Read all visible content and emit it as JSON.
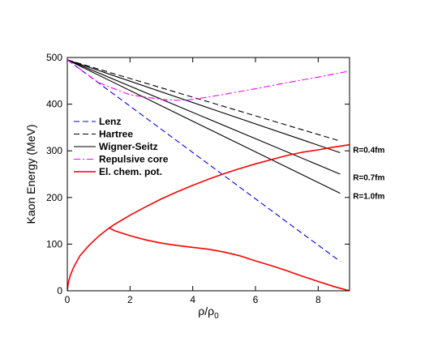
{
  "chart_data": {
    "type": "line",
    "title": "",
    "xlabel": "ρ/ρ",
    "xlabel_sub": "0",
    "ylabel": "Kaon Energy (MeV)",
    "xlim": [
      0,
      9
    ],
    "ylim": [
      0,
      500
    ],
    "x_ticks": [
      0,
      2,
      4,
      6,
      8
    ],
    "y_ticks": [
      0,
      100,
      200,
      300,
      400,
      500
    ],
    "grid": false,
    "legend_position": "left-middle",
    "colors": {
      "blue": "#0000ff",
      "black": "#000000",
      "magenta": "#ff00ff",
      "red": "#ff0000"
    },
    "series": [
      {
        "name": "Lenz",
        "color": "#0000ff",
        "style": "dashed",
        "x": [
          0,
          8.7
        ],
        "y": [
          495,
          63
        ]
      },
      {
        "name": "Hartree",
        "color": "#000000",
        "style": "dashed",
        "x": [
          0,
          8.7
        ],
        "y": [
          495,
          321
        ]
      },
      {
        "name": "Wigner-Seitz",
        "color": "#000000",
        "style": "solid",
        "x": [
          0,
          8.7
        ],
        "y": [
          495,
          296
        ]
      },
      {
        "color": "#000000",
        "style": "solid",
        "x": [
          0,
          8.7
        ],
        "y": [
          495,
          250
        ]
      },
      {
        "color": "#000000",
        "style": "solid",
        "x": [
          0,
          8.7
        ],
        "y": [
          495,
          209
        ]
      },
      {
        "name": "Repulsive core",
        "color": "#ff00ff",
        "style": "dashdot",
        "x": [
          0,
          1,
          2,
          3,
          3.5,
          4,
          5,
          6,
          7,
          8,
          9
        ],
        "y": [
          495,
          446,
          420,
          410,
          408,
          410,
          421,
          433,
          446,
          458,
          471
        ]
      },
      {
        "name": "El. chem. pot.",
        "color": "#ff0000",
        "style": "solid",
        "x": [
          0,
          0.02,
          0.05,
          0.1,
          0.2,
          0.4,
          0.7,
          1.0,
          1.3,
          1.5,
          2,
          2.5,
          3,
          3.5,
          4,
          4.5,
          5,
          5.5,
          6,
          6.5,
          7,
          7.5,
          8,
          8.5,
          9
        ],
        "y": [
          0,
          12,
          22,
          34,
          50,
          75,
          98,
          117,
          133,
          142,
          162,
          180,
          197,
          212,
          226,
          239,
          251,
          262,
          272,
          281,
          290,
          297,
          302,
          308,
          313
        ]
      },
      {
        "color": "#ff0000",
        "style": "solid",
        "x": [
          1.35,
          1.5,
          2,
          2.5,
          3,
          3.5,
          4,
          4.5,
          5,
          5.5,
          6,
          6.5,
          7,
          7.5,
          8,
          8.5,
          9
        ],
        "y": [
          134,
          129,
          118,
          109,
          102,
          97,
          93,
          89,
          83,
          75,
          64,
          54,
          43,
          31,
          20,
          9,
          0
        ]
      }
    ],
    "annotations": [
      {
        "text": "R=0.4fm",
        "x": 8.85,
        "y": 301
      },
      {
        "text": "R=0.7fm",
        "x": 8.85,
        "y": 242
      },
      {
        "text": "R=1.0fm",
        "x": 8.85,
        "y": 202
      }
    ]
  }
}
